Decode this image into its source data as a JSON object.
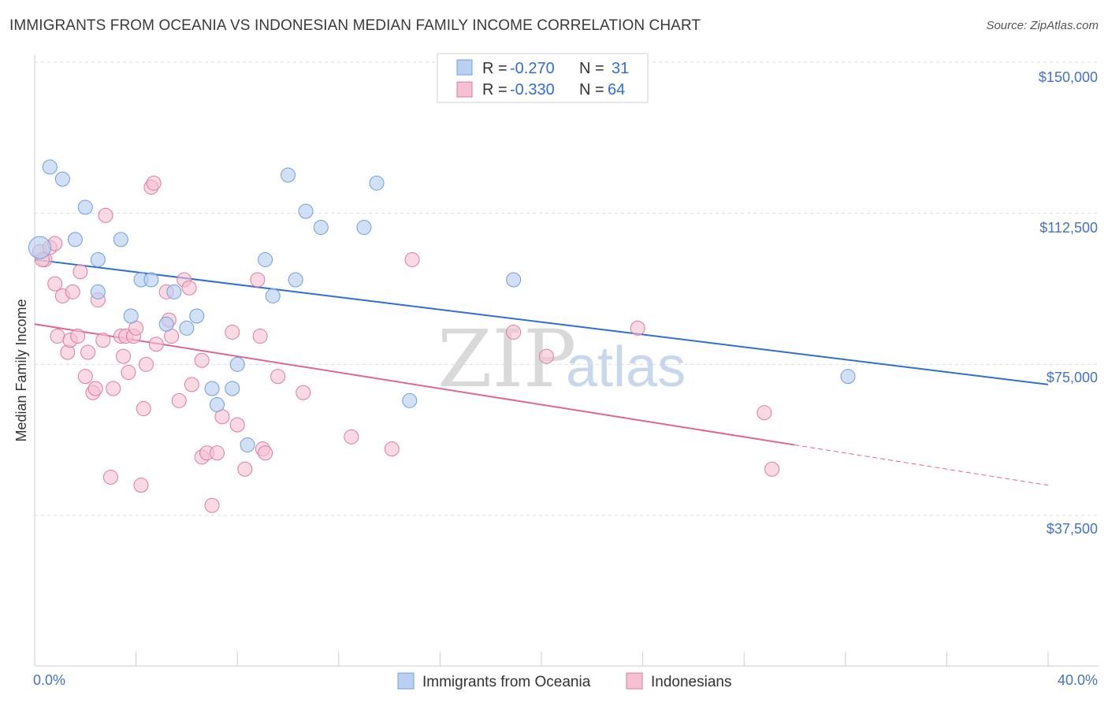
{
  "title": "IMMIGRANTS FROM OCEANIA VS INDONESIAN MEDIAN FAMILY INCOME CORRELATION CHART",
  "source": "Source: ZipAtlas.com",
  "watermark": {
    "zip": "ZIP",
    "atlas": "atlas"
  },
  "colors": {
    "blue": "#6f9fe0",
    "blue_fill": "#b9d0f0",
    "pink": "#e07aa0",
    "pink_fill": "#f5c0d2",
    "blue_line": "#2f6fd4",
    "pink_line": "#e06690"
  },
  "legend_top": {
    "rows": [
      {
        "r_label": "R = ",
        "r_value": "-0.270",
        "n_label": "N = ",
        "n_value": "31"
      },
      {
        "r_label": "R = ",
        "r_value": "-0.330",
        "n_label": "N = ",
        "n_value": "64"
      }
    ]
  },
  "legend_bottom": [
    "Immigrants from Oceania",
    "Indonesians"
  ],
  "chart_data": {
    "type": "scatter",
    "title": "IMMIGRANTS FROM OCEANIA VS INDONESIAN MEDIAN FAMILY INCOME CORRELATION CHART",
    "xlabel": "",
    "ylabel": "Median Family Income",
    "xlim": [
      0,
      40
    ],
    "ylim": [
      0,
      155000
    ],
    "x_tick_labels": [
      "0.0%",
      "40.0%"
    ],
    "y_ticks": [
      37500,
      75000,
      112500,
      150000
    ],
    "y_tick_labels": [
      "$37,500",
      "$75,000",
      "$112,500",
      "$150,000"
    ],
    "series": [
      {
        "name": "Immigrants from Oceania",
        "trend": {
          "x": [
            0,
            40
          ],
          "y": [
            101000,
            70000
          ]
        },
        "points": [
          {
            "x": 0.2,
            "y": 104000,
            "big": true
          },
          {
            "x": 0.6,
            "y": 124000
          },
          {
            "x": 1.1,
            "y": 121000
          },
          {
            "x": 1.6,
            "y": 106000
          },
          {
            "x": 2.0,
            "y": 114000
          },
          {
            "x": 2.5,
            "y": 101000
          },
          {
            "x": 2.5,
            "y": 93000
          },
          {
            "x": 3.4,
            "y": 106000
          },
          {
            "x": 3.8,
            "y": 87000
          },
          {
            "x": 4.2,
            "y": 96000
          },
          {
            "x": 4.6,
            "y": 96000
          },
          {
            "x": 5.2,
            "y": 85000
          },
          {
            "x": 5.5,
            "y": 93000
          },
          {
            "x": 6.0,
            "y": 84000
          },
          {
            "x": 6.4,
            "y": 87000
          },
          {
            "x": 7.0,
            "y": 69000
          },
          {
            "x": 7.2,
            "y": 65000
          },
          {
            "x": 7.8,
            "y": 69000
          },
          {
            "x": 8.0,
            "y": 75000
          },
          {
            "x": 8.4,
            "y": 55000
          },
          {
            "x": 9.1,
            "y": 101000
          },
          {
            "x": 9.4,
            "y": 92000
          },
          {
            "x": 10.0,
            "y": 122000
          },
          {
            "x": 10.3,
            "y": 96000
          },
          {
            "x": 10.7,
            "y": 113000
          },
          {
            "x": 11.3,
            "y": 109000
          },
          {
            "x": 13.0,
            "y": 109000
          },
          {
            "x": 13.5,
            "y": 120000
          },
          {
            "x": 14.8,
            "y": 66000
          },
          {
            "x": 18.9,
            "y": 96000
          },
          {
            "x": 32.1,
            "y": 72000
          }
        ]
      },
      {
        "name": "Indonesians",
        "trend": {
          "x": [
            0,
            30
          ],
          "y": [
            85000,
            55000
          ]
        },
        "trend_extension": {
          "x": [
            30,
            40
          ],
          "y": [
            55000,
            45000
          ]
        },
        "points": [
          {
            "x": 0.2,
            "y": 103000
          },
          {
            "x": 0.4,
            "y": 101000
          },
          {
            "x": 0.6,
            "y": 104000
          },
          {
            "x": 0.8,
            "y": 105000
          },
          {
            "x": 0.8,
            "y": 95000
          },
          {
            "x": 0.9,
            "y": 82000
          },
          {
            "x": 1.1,
            "y": 92000
          },
          {
            "x": 1.3,
            "y": 78000
          },
          {
            "x": 1.4,
            "y": 81000
          },
          {
            "x": 1.5,
            "y": 93000
          },
          {
            "x": 1.7,
            "y": 82000
          },
          {
            "x": 1.8,
            "y": 98000
          },
          {
            "x": 2.0,
            "y": 72000
          },
          {
            "x": 2.1,
            "y": 78000
          },
          {
            "x": 2.3,
            "y": 68000
          },
          {
            "x": 2.4,
            "y": 69000
          },
          {
            "x": 2.5,
            "y": 91000
          },
          {
            "x": 2.7,
            "y": 81000
          },
          {
            "x": 2.8,
            "y": 112000
          },
          {
            "x": 3.0,
            "y": 47000
          },
          {
            "x": 3.1,
            "y": 69000
          },
          {
            "x": 3.4,
            "y": 82000
          },
          {
            "x": 3.5,
            "y": 77000
          },
          {
            "x": 3.6,
            "y": 82000
          },
          {
            "x": 3.7,
            "y": 73000
          },
          {
            "x": 3.9,
            "y": 82000
          },
          {
            "x": 4.0,
            "y": 84000
          },
          {
            "x": 4.2,
            "y": 45000
          },
          {
            "x": 4.3,
            "y": 64000
          },
          {
            "x": 4.4,
            "y": 75000
          },
          {
            "x": 4.6,
            "y": 119000
          },
          {
            "x": 4.7,
            "y": 120000
          },
          {
            "x": 4.8,
            "y": 80000
          },
          {
            "x": 5.2,
            "y": 93000
          },
          {
            "x": 5.3,
            "y": 86000
          },
          {
            "x": 5.4,
            "y": 82000
          },
          {
            "x": 5.7,
            "y": 66000
          },
          {
            "x": 5.9,
            "y": 96000
          },
          {
            "x": 6.1,
            "y": 94000
          },
          {
            "x": 6.2,
            "y": 70000
          },
          {
            "x": 6.6,
            "y": 52000
          },
          {
            "x": 6.6,
            "y": 76000
          },
          {
            "x": 6.8,
            "y": 53000
          },
          {
            "x": 7.0,
            "y": 40000
          },
          {
            "x": 7.2,
            "y": 53000
          },
          {
            "x": 7.4,
            "y": 62000
          },
          {
            "x": 7.8,
            "y": 83000
          },
          {
            "x": 8.0,
            "y": 60000
          },
          {
            "x": 8.3,
            "y": 49000
          },
          {
            "x": 8.8,
            "y": 96000
          },
          {
            "x": 8.9,
            "y": 82000
          },
          {
            "x": 9.0,
            "y": 54000
          },
          {
            "x": 9.1,
            "y": 53000
          },
          {
            "x": 9.6,
            "y": 72000
          },
          {
            "x": 10.6,
            "y": 68000
          },
          {
            "x": 12.5,
            "y": 57000
          },
          {
            "x": 14.1,
            "y": 54000
          },
          {
            "x": 14.9,
            "y": 101000
          },
          {
            "x": 18.9,
            "y": 83000
          },
          {
            "x": 20.2,
            "y": 77000
          },
          {
            "x": 23.8,
            "y": 84000
          },
          {
            "x": 28.8,
            "y": 63000
          },
          {
            "x": 29.1,
            "y": 49000
          },
          {
            "x": 0.3,
            "y": 101000
          }
        ]
      }
    ]
  }
}
